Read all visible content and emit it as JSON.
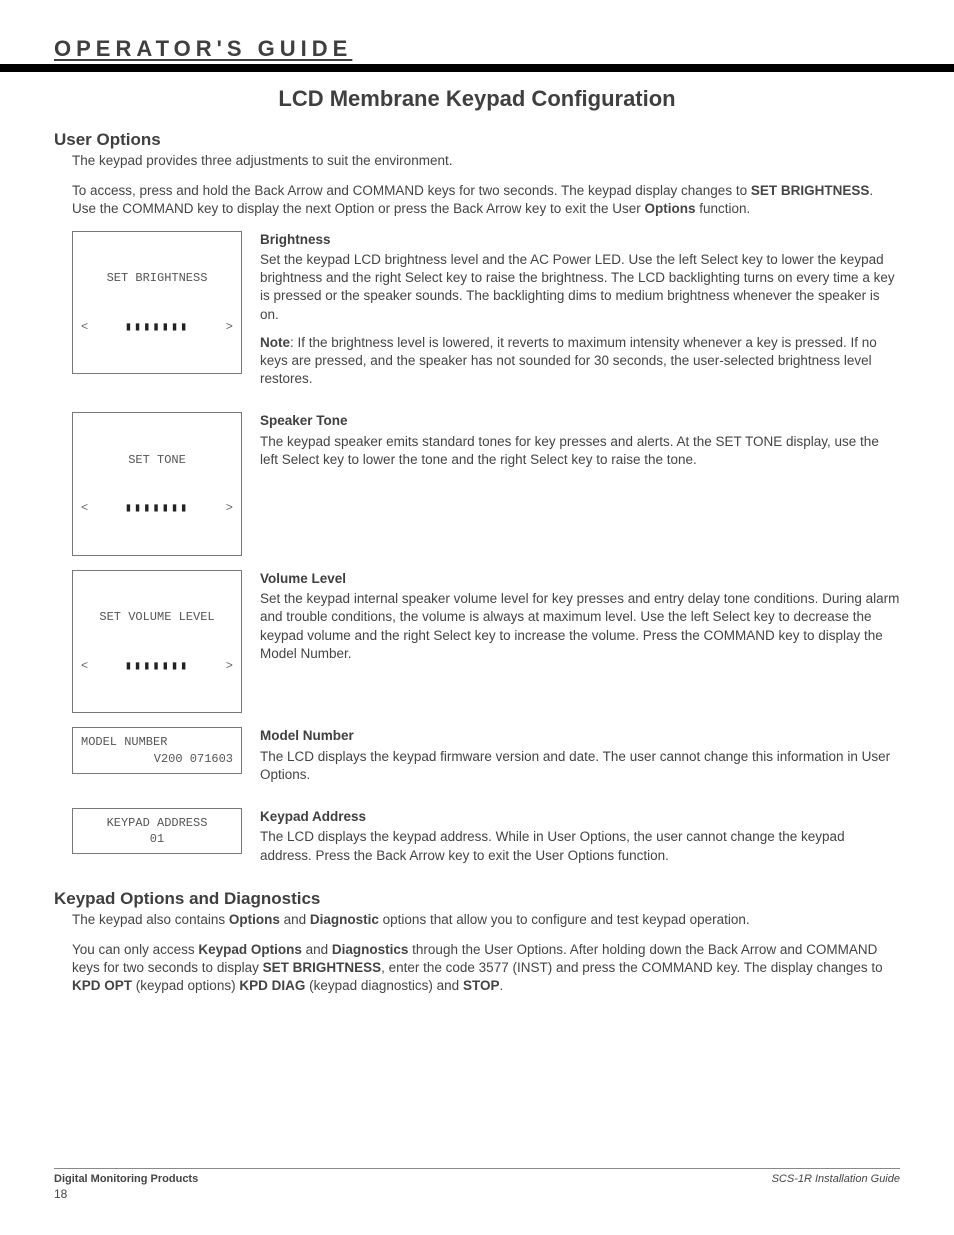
{
  "header": {
    "guide_label": "OPERATOR'S GUIDE",
    "page_title": "LCD Membrane Keypad Configuration"
  },
  "user_options": {
    "heading": "User Options",
    "intro": "The keypad provides three adjustments to suit the environment.",
    "access_pre": "To access, press and hold the Back Arrow and COMMAND keys for two seconds.  The keypad display changes to ",
    "access_bold1": "SET BRIGHTNESS",
    "access_mid": ".  Use the COMMAND key to display the next Option or press the Back Arrow key to exit the User ",
    "access_bold2": "Options",
    "access_post": " function."
  },
  "brightness": {
    "lcd_line1": "SET BRIGHTNESS",
    "heading": "Brightness",
    "para1": "Set the keypad LCD brightness level and the AC Power LED.  Use the left Select key to lower the keypad brightness and the right Select key to raise the brightness.  The LCD backlighting turns on every time a key is pressed or the speaker sounds.  The backlighting dims to medium brightness whenever the speaker is on.",
    "note_label": "Note",
    "note_text": ": If the brightness level is lowered, it reverts to maximum intensity whenever a key is pressed.  If no keys are pressed, and the speaker has not sounded for 30 seconds, the user-selected brightness level restores."
  },
  "tone": {
    "lcd_line1": "SET TONE",
    "heading": "Speaker Tone",
    "para": "The keypad speaker emits standard tones for key presses and alerts.  At the SET TONE display, use the left Select key to lower the tone and the right Select key to raise the tone."
  },
  "volume": {
    "lcd_line1": "SET VOLUME LEVEL",
    "heading": "Volume Level",
    "para": "Set the keypad internal speaker volume level for key presses and entry delay tone conditions.  During alarm and trouble conditions, the volume is always at maximum level.  Use the left Select key to decrease the keypad volume and the right Select key to increase the volume.  Press the COMMAND key to display the Model Number."
  },
  "model": {
    "lcd_line1": "MODEL NUMBER",
    "lcd_line2": "V200 071603",
    "heading": "Model Number",
    "para": "The LCD displays the keypad firmware version and date.  The user cannot change this information in User Options."
  },
  "address": {
    "lcd_line1": "KEYPAD ADDRESS",
    "lcd_line2": "01",
    "heading": "Keypad Address",
    "para": "The LCD displays the keypad address.  While in User Options, the user cannot change the keypad address.  Press the Back Arrow key to exit the User Options function."
  },
  "diagnostics": {
    "heading": "Keypad Options and Diagnostics",
    "p1_pre": "The keypad also contains ",
    "p1_b1": "Options",
    "p1_mid1": " and ",
    "p1_b2": "Diagnostic",
    "p1_post": " options that allow you to configure and test keypad operation.",
    "p2_pre": "You can only access ",
    "p2_b1": "Keypad Options",
    "p2_mid1": " and ",
    "p2_b2": "Diagnostics",
    "p2_mid2": " through the User Options.  After holding down the Back Arrow and COMMAND keys for two seconds to display ",
    "p2_b3": "SET BRIGHTNESS",
    "p2_mid3": ", enter the code 3577 (INST) and press the COMMAND key.  The display changes to ",
    "p2_b4": "KPD OPT",
    "p2_mid4": " (keypad options) ",
    "p2_b5": "KPD DIAG",
    "p2_mid5": " (keypad diagnostics) and ",
    "p2_b6": "STOP",
    "p2_post": "."
  },
  "footer": {
    "left": "Digital Monitoring Products",
    "right": "SCS-1R Installation Guide",
    "page": "18"
  },
  "lcd_arrows": {
    "left": "<",
    "right": ">"
  },
  "bars": "▮▮▮▮▮▮▮"
}
